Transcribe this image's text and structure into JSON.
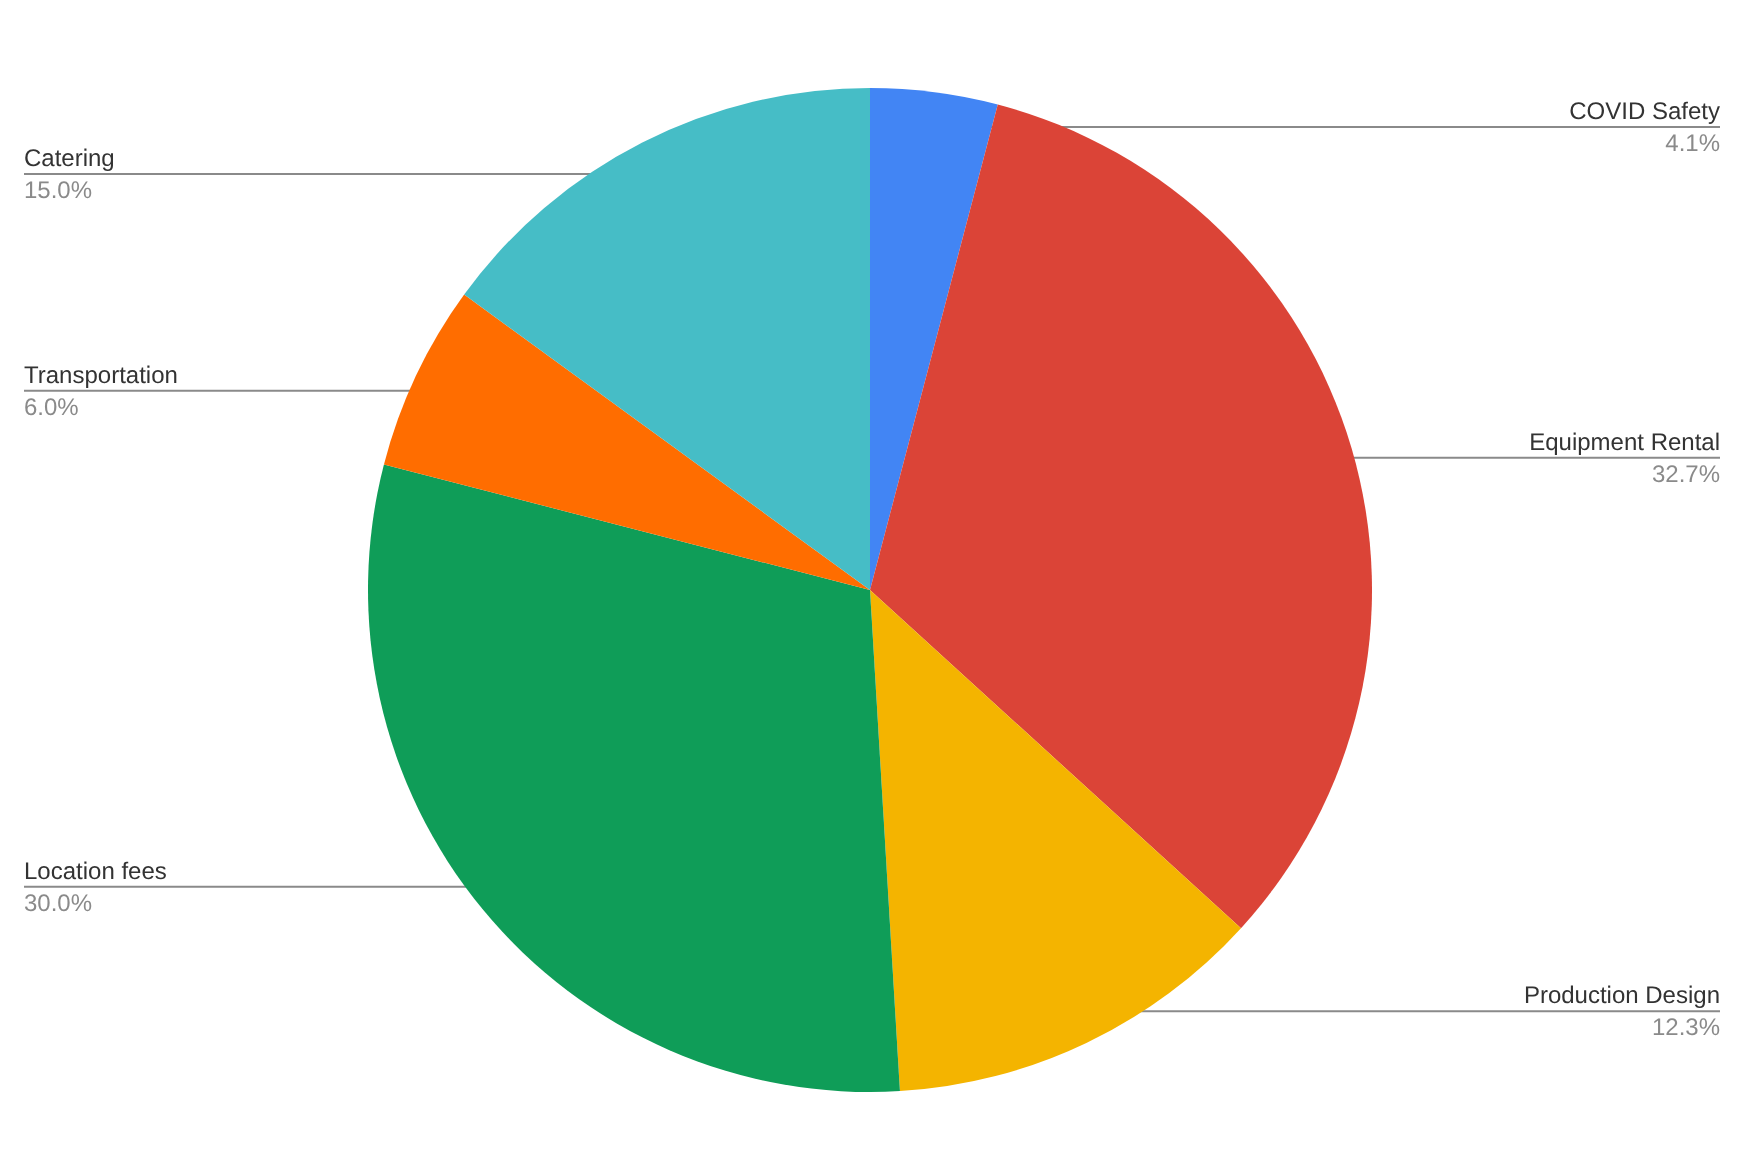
{
  "chart_data": {
    "type": "pie",
    "categories": [
      "COVID Safety",
      "Equipment Rental",
      "Production Design",
      "Location fees",
      "Transportation",
      "Catering"
    ],
    "values": [
      4.1,
      32.7,
      12.3,
      30.0,
      6.0,
      15.0
    ],
    "value_labels": [
      "4.1%",
      "32.7%",
      "12.3%",
      "30.0%",
      "6.0%",
      "15.0%"
    ],
    "colors": [
      "#4285f4",
      "#db4437",
      "#f4b400",
      "#0f9d58",
      "#ff6d00",
      "#46bdc6"
    ],
    "legend": false
  }
}
